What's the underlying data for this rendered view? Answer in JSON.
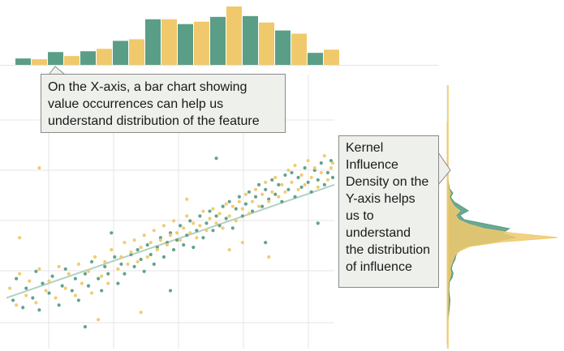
{
  "annotations": {
    "x_axis_callout": "On the X-axis, a bar chart showing value occurrences can help us understand distribution of the feature",
    "y_axis_callout": "Kernel Influence Density on the Y-axis helps us to understand the distribution of influence"
  },
  "colors": {
    "series_a": "#5a9e88",
    "series_b": "#f0c96c",
    "trend_line": "#9fc6b2",
    "grid": "#e4e4e4",
    "callout_fill": "#eef0ec",
    "callout_border": "#8a8a8a"
  },
  "chart_data": [
    {
      "type": "scatter",
      "subplot": "main",
      "grid": true,
      "x_ticks_shown": false,
      "y_ticks_shown": false,
      "xlim": [
        0,
        10
      ],
      "ylim": [
        0,
        10
      ],
      "trend": {
        "x": [
          0,
          10
        ],
        "y": [
          1.6,
          6.3
        ]
      },
      "series": [
        {
          "color": "#5a9e88",
          "values": [
            [
              0.2,
              1.5
            ],
            [
              0.3,
              2.4
            ],
            [
              0.5,
              1.2
            ],
            [
              0.6,
              2.0
            ],
            [
              0.8,
              1.6
            ],
            [
              0.9,
              2.7
            ],
            [
              1.0,
              1.1
            ],
            [
              1.1,
              2.2
            ],
            [
              1.3,
              1.8
            ],
            [
              1.4,
              2.5
            ],
            [
              1.6,
              1.3
            ],
            [
              1.7,
              2.1
            ],
            [
              1.8,
              2.8
            ],
            [
              2.0,
              1.9
            ],
            [
              2.1,
              2.4
            ],
            [
              2.2,
              1.5
            ],
            [
              2.4,
              2.6
            ],
            [
              2.5,
              2.1
            ],
            [
              2.6,
              3.1
            ],
            [
              2.8,
              2.4
            ],
            [
              2.9,
              1.9
            ],
            [
              3.0,
              2.9
            ],
            [
              3.1,
              2.6
            ],
            [
              3.3,
              3.3
            ],
            [
              3.4,
              2.2
            ],
            [
              3.5,
              3.0
            ],
            [
              3.6,
              2.6
            ],
            [
              3.8,
              3.4
            ],
            [
              3.9,
              2.9
            ],
            [
              4.0,
              3.6
            ],
            [
              4.1,
              3.2
            ],
            [
              4.2,
              2.7
            ],
            [
              4.3,
              3.8
            ],
            [
              4.4,
              3.4
            ],
            [
              4.5,
              3.0
            ],
            [
              4.6,
              3.7
            ],
            [
              4.7,
              4.1
            ],
            [
              4.8,
              3.3
            ],
            [
              4.9,
              3.9
            ],
            [
              5.0,
              4.3
            ],
            [
              5.1,
              3.6
            ],
            [
              5.2,
              4.0
            ],
            [
              5.3,
              4.6
            ],
            [
              5.4,
              3.8
            ],
            [
              5.5,
              4.2
            ],
            [
              5.6,
              4.8
            ],
            [
              5.7,
              3.7
            ],
            [
              5.8,
              4.4
            ],
            [
              5.9,
              5.0
            ],
            [
              6.0,
              4.1
            ],
            [
              6.1,
              4.7
            ],
            [
              6.2,
              5.2
            ],
            [
              6.3,
              4.4
            ],
            [
              6.4,
              5.0
            ],
            [
              6.5,
              4.6
            ],
            [
              6.6,
              5.4
            ],
            [
              6.7,
              4.9
            ],
            [
              6.8,
              5.6
            ],
            [
              6.9,
              4.5
            ],
            [
              7.0,
              5.3
            ],
            [
              7.1,
              5.8
            ],
            [
              7.2,
              5.0
            ],
            [
              7.3,
              5.5
            ],
            [
              7.4,
              6.0
            ],
            [
              7.5,
              5.2
            ],
            [
              7.6,
              5.8
            ],
            [
              7.7,
              6.3
            ],
            [
              7.8,
              5.4
            ],
            [
              7.9,
              6.1
            ],
            [
              8.0,
              5.7
            ],
            [
              8.1,
              6.5
            ],
            [
              8.2,
              5.9
            ],
            [
              8.3,
              6.3
            ],
            [
              8.4,
              5.6
            ],
            [
              8.5,
              6.7
            ],
            [
              8.6,
              6.1
            ],
            [
              8.7,
              6.8
            ],
            [
              8.8,
              5.8
            ],
            [
              8.9,
              6.6
            ],
            [
              9.0,
              6.2
            ],
            [
              9.1,
              7.0
            ],
            [
              9.2,
              6.4
            ],
            [
              9.3,
              6.0
            ],
            [
              9.4,
              6.9
            ],
            [
              9.5,
              6.5
            ],
            [
              9.6,
              7.2
            ],
            [
              9.7,
              6.3
            ],
            [
              9.8,
              6.8
            ],
            [
              9.9,
              7.3
            ],
            [
              10.0,
              6.6
            ],
            [
              3.2,
              4.3
            ],
            [
              5.0,
              1.9
            ],
            [
              6.4,
              7.4
            ],
            [
              7.9,
              3.9
            ],
            [
              2.4,
              0.4
            ],
            [
              9.5,
              4.7
            ]
          ]
        },
        {
          "color": "#f0c96c",
          "values": [
            [
              0.1,
              2.0
            ],
            [
              0.3,
              1.3
            ],
            [
              0.4,
              2.6
            ],
            [
              0.6,
              1.7
            ],
            [
              0.7,
              2.3
            ],
            [
              0.9,
              1.4
            ],
            [
              1.0,
              2.8
            ],
            [
              1.2,
              1.9
            ],
            [
              1.3,
              2.3
            ],
            [
              1.5,
              1.6
            ],
            [
              1.6,
              2.9
            ],
            [
              1.8,
              2.0
            ],
            [
              1.9,
              2.6
            ],
            [
              2.1,
              1.7
            ],
            [
              2.2,
              3.0
            ],
            [
              2.3,
              2.2
            ],
            [
              2.5,
              2.7
            ],
            [
              2.6,
              1.8
            ],
            [
              2.7,
              3.3
            ],
            [
              2.9,
              2.5
            ],
            [
              3.0,
              3.1
            ],
            [
              3.1,
              2.2
            ],
            [
              3.2,
              3.6
            ],
            [
              3.4,
              2.8
            ],
            [
              3.5,
              3.3
            ],
            [
              3.6,
              3.9
            ],
            [
              3.7,
              3.0
            ],
            [
              3.8,
              3.5
            ],
            [
              3.9,
              4.0
            ],
            [
              4.0,
              3.1
            ],
            [
              4.1,
              3.7
            ],
            [
              4.2,
              4.2
            ],
            [
              4.3,
              3.3
            ],
            [
              4.4,
              3.9
            ],
            [
              4.5,
              4.4
            ],
            [
              4.6,
              3.6
            ],
            [
              4.7,
              4.0
            ],
            [
              4.8,
              4.6
            ],
            [
              4.9,
              3.8
            ],
            [
              5.0,
              4.2
            ],
            [
              5.1,
              4.8
            ],
            [
              5.2,
              4.3
            ],
            [
              5.3,
              4.0
            ],
            [
              5.4,
              4.5
            ],
            [
              5.5,
              5.0
            ],
            [
              5.6,
              4.3
            ],
            [
              5.7,
              4.7
            ],
            [
              5.8,
              4.1
            ],
            [
              5.9,
              4.6
            ],
            [
              6.0,
              5.2
            ],
            [
              6.1,
              4.4
            ],
            [
              6.2,
              4.9
            ],
            [
              6.3,
              5.3
            ],
            [
              6.4,
              4.7
            ],
            [
              6.5,
              5.1
            ],
            [
              6.6,
              4.5
            ],
            [
              6.7,
              5.5
            ],
            [
              6.8,
              5.0
            ],
            [
              6.9,
              5.4
            ],
            [
              7.0,
              4.8
            ],
            [
              7.1,
              5.6
            ],
            [
              7.2,
              5.3
            ],
            [
              7.3,
              5.9
            ],
            [
              7.4,
              5.1
            ],
            [
              7.5,
              5.6
            ],
            [
              7.6,
              6.1
            ],
            [
              7.7,
              5.4
            ],
            [
              7.8,
              5.9
            ],
            [
              7.9,
              6.4
            ],
            [
              8.0,
              5.6
            ],
            [
              8.1,
              6.0
            ],
            [
              8.2,
              6.6
            ],
            [
              8.3,
              5.8
            ],
            [
              8.4,
              6.3
            ],
            [
              8.5,
              6.0
            ],
            [
              8.6,
              6.9
            ],
            [
              8.7,
              6.4
            ],
            [
              8.8,
              7.1
            ],
            [
              8.9,
              6.1
            ],
            [
              9.0,
              6.7
            ],
            [
              9.1,
              6.3
            ],
            [
              9.2,
              7.3
            ],
            [
              9.3,
              6.6
            ],
            [
              9.4,
              7.0
            ],
            [
              9.5,
              6.2
            ],
            [
              9.6,
              6.8
            ],
            [
              9.7,
              7.5
            ],
            [
              9.8,
              6.5
            ],
            [
              9.9,
              7.0
            ],
            [
              10.0,
              7.2
            ],
            [
              1.0,
              7.0
            ],
            [
              4.1,
              1.0
            ],
            [
              5.5,
              5.7
            ],
            [
              6.8,
              3.6
            ],
            [
              2.8,
              0.7
            ],
            [
              8.0,
              3.3
            ],
            [
              0.4,
              4.1
            ],
            [
              7.2,
              3.9
            ]
          ]
        }
      ]
    },
    {
      "type": "bar",
      "subplot": "top-marginal",
      "bars": [
        {
          "x": 0,
          "value": 8
        },
        {
          "x": 1,
          "value": 7
        },
        {
          "x": 2,
          "value": 16
        },
        {
          "x": 3,
          "value": 11
        },
        {
          "x": 4,
          "value": 17
        },
        {
          "x": 5,
          "value": 20
        },
        {
          "x": 6,
          "value": 30
        },
        {
          "x": 7,
          "value": 32
        },
        {
          "x": 8,
          "value": 57
        },
        {
          "x": 9,
          "value": 57
        },
        {
          "x": 10,
          "value": 51
        },
        {
          "x": 11,
          "value": 54
        },
        {
          "x": 12,
          "value": 60
        },
        {
          "x": 13,
          "value": 73
        },
        {
          "x": 14,
          "value": 61
        },
        {
          "x": 15,
          "value": 53
        },
        {
          "x": 16,
          "value": 43
        },
        {
          "x": 17,
          "value": 39
        },
        {
          "x": 18,
          "value": 15
        },
        {
          "x": 19,
          "value": 19
        }
      ],
      "bar_colors": [
        "#5a9e88",
        "#f0c96c"
      ]
    },
    {
      "type": "area",
      "subplot": "right-marginal-density",
      "orientation": "horizontal",
      "series": [
        {
          "color": "#5a9e88",
          "y": [
            0.0,
            0.4,
            0.8,
            1.2,
            1.6,
            2.0,
            2.4,
            2.8,
            3.0,
            3.2,
            3.4,
            3.6,
            3.8,
            4.0,
            4.2,
            4.4,
            4.6,
            4.8,
            5.0,
            5.2,
            5.4,
            5.6,
            5.8,
            6.0,
            6.2,
            6.4,
            6.6,
            6.8,
            7.0,
            7.4,
            7.8,
            8.2,
            8.6,
            9.0,
            9.4,
            10.0
          ],
          "density": [
            0.0,
            0.02,
            0.03,
            0.08,
            0.15,
            0.2,
            0.12,
            0.15,
            0.35,
            0.42,
            0.3,
            0.38,
            0.55,
            0.62,
            0.8,
            1.3,
            3.2,
            4.8,
            3.9,
            4.4,
            2.8,
            1.2,
            0.9,
            1.5,
            1.0,
            0.5,
            0.25,
            0.4,
            0.15,
            0.06,
            0.03,
            0.02,
            0.01,
            0.0,
            0.0,
            0.0
          ]
        },
        {
          "color": "#f0c96c",
          "y": [
            0.0,
            0.4,
            0.8,
            1.2,
            1.6,
            2.0,
            2.4,
            2.8,
            3.0,
            3.2,
            3.4,
            3.6,
            3.8,
            4.0,
            4.2,
            4.4,
            4.6,
            4.8,
            5.0,
            5.2,
            5.4,
            5.6,
            5.8,
            6.0,
            6.2,
            6.4,
            6.6,
            6.8,
            7.0,
            7.4,
            7.8,
            8.2,
            8.6,
            9.0,
            9.4,
            10.0
          ],
          "density": [
            0.0,
            0.0,
            0.01,
            0.02,
            0.05,
            0.08,
            0.06,
            0.1,
            0.2,
            0.28,
            0.2,
            0.3,
            0.42,
            0.55,
            0.9,
            1.6,
            3.8,
            7.8,
            4.6,
            2.6,
            1.5,
            0.8,
            0.6,
            0.9,
            0.5,
            0.3,
            0.15,
            0.25,
            0.1,
            0.04,
            0.02,
            0.01,
            0.0,
            0.0,
            0.0,
            0.0
          ]
        }
      ]
    }
  ]
}
